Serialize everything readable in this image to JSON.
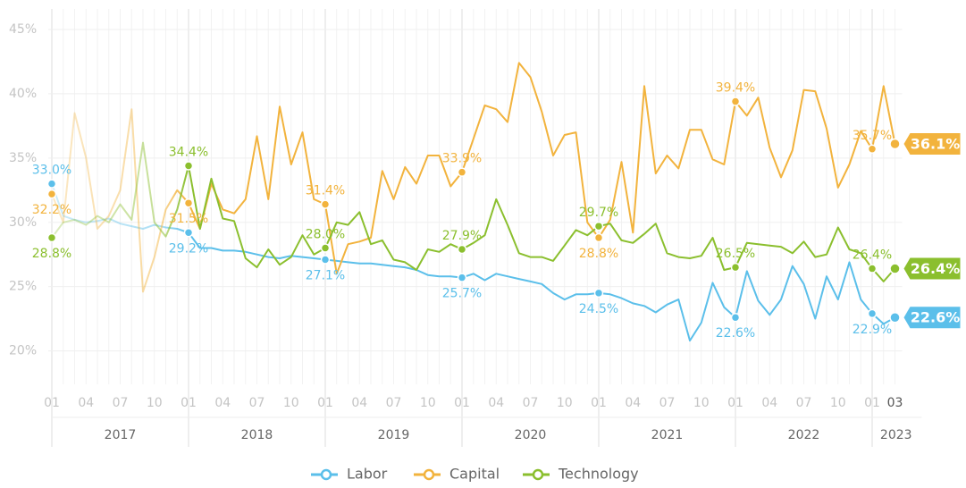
{
  "chart_data": {
    "type": "line",
    "x": [
      "2017-01",
      "2017-02",
      "2017-03",
      "2017-04",
      "2017-05",
      "2017-06",
      "2017-07",
      "2017-08",
      "2017-09",
      "2017-10",
      "2017-11",
      "2017-12",
      "2018-01",
      "2018-02",
      "2018-03",
      "2018-04",
      "2018-05",
      "2018-06",
      "2018-07",
      "2018-08",
      "2018-09",
      "2018-10",
      "2018-11",
      "2018-12",
      "2019-01",
      "2019-02",
      "2019-03",
      "2019-04",
      "2019-05",
      "2019-06",
      "2019-07",
      "2019-08",
      "2019-09",
      "2019-10",
      "2019-11",
      "2019-12",
      "2020-01",
      "2020-02",
      "2020-03",
      "2020-04",
      "2020-05",
      "2020-06",
      "2020-07",
      "2020-08",
      "2020-09",
      "2020-10",
      "2020-11",
      "2020-12",
      "2021-01",
      "2021-02",
      "2021-03",
      "2021-04",
      "2021-05",
      "2021-06",
      "2021-07",
      "2021-08",
      "2021-09",
      "2021-10",
      "2021-11",
      "2021-12",
      "2022-01",
      "2022-02",
      "2022-03",
      "2022-04",
      "2022-05",
      "2022-06",
      "2022-07",
      "2022-08",
      "2022-09",
      "2022-10",
      "2022-11",
      "2022-12",
      "2023-01",
      "2023-02",
      "2023-03"
    ],
    "xticks": [
      {
        "value": "2017-01",
        "label": "01"
      },
      {
        "value": "2017-04",
        "label": "04"
      },
      {
        "value": "2017-07",
        "label": "07"
      },
      {
        "value": "2017-10",
        "label": "10"
      },
      {
        "value": "2018-01",
        "label": "01"
      },
      {
        "value": "2018-04",
        "label": "04"
      },
      {
        "value": "2018-07",
        "label": "07"
      },
      {
        "value": "2018-10",
        "label": "10"
      },
      {
        "value": "2019-01",
        "label": "01"
      },
      {
        "value": "2019-04",
        "label": "04"
      },
      {
        "value": "2019-07",
        "label": "07"
      },
      {
        "value": "2019-10",
        "label": "10"
      },
      {
        "value": "2020-01",
        "label": "01"
      },
      {
        "value": "2020-04",
        "label": "04"
      },
      {
        "value": "2020-07",
        "label": "07"
      },
      {
        "value": "2020-10",
        "label": "10"
      },
      {
        "value": "2021-01",
        "label": "01"
      },
      {
        "value": "2021-04",
        "label": "04"
      },
      {
        "value": "2021-07",
        "label": "07"
      },
      {
        "value": "2021-10",
        "label": "10"
      },
      {
        "value": "2022-01",
        "label": "01"
      },
      {
        "value": "2022-04",
        "label": "04"
      },
      {
        "value": "2022-07",
        "label": "07"
      },
      {
        "value": "2022-10",
        "label": "10"
      },
      {
        "value": "2023-01",
        "label": "01"
      },
      {
        "value": "2023-03",
        "label": "03"
      }
    ],
    "x_groups": [
      "2017",
      "2018",
      "2019",
      "2020",
      "2021",
      "2022",
      "2023"
    ],
    "ylim": [
      17.4,
      46.6
    ],
    "yticks": [
      {
        "value": 20,
        "label": "20%"
      },
      {
        "value": 25,
        "label": "25%"
      },
      {
        "value": 30,
        "label": "30%"
      },
      {
        "value": 35,
        "label": "35%"
      },
      {
        "value": 40,
        "label": "40%"
      },
      {
        "value": 45,
        "label": "45%"
      }
    ],
    "grid": true,
    "legend": "bottom",
    "series": [
      {
        "name": "Labor",
        "color": "#5bbfea",
        "values": [
          33.0,
          30.5,
          30.2,
          30.0,
          30.1,
          30.3,
          29.9,
          29.7,
          29.5,
          29.8,
          29.6,
          29.5,
          29.2,
          28.0,
          28.0,
          27.8,
          27.8,
          27.7,
          27.5,
          27.3,
          27.2,
          27.4,
          27.3,
          27.2,
          27.1,
          27.0,
          26.9,
          26.8,
          26.8,
          26.7,
          26.6,
          26.5,
          26.3,
          25.9,
          25.8,
          25.8,
          25.7,
          26.0,
          25.5,
          26.0,
          25.8,
          25.6,
          25.4,
          25.2,
          24.5,
          24.0,
          24.4,
          24.4,
          24.5,
          24.4,
          24.1,
          23.7,
          23.5,
          23.0,
          23.6,
          24.0,
          20.8,
          22.2,
          25.3,
          23.4,
          22.6,
          26.2,
          23.9,
          22.8,
          24.0,
          26.6,
          25.2,
          22.5,
          25.8,
          24.0,
          26.9,
          24.0,
          22.9,
          22.1,
          22.6
        ],
        "value_labels": [
          "33.0%",
          null,
          null,
          null,
          null,
          null,
          null,
          null,
          null,
          null,
          null,
          null,
          "29.2%",
          null,
          null,
          null,
          null,
          null,
          null,
          null,
          null,
          null,
          null,
          null,
          "27.1%",
          null,
          null,
          null,
          null,
          null,
          null,
          null,
          null,
          null,
          null,
          null,
          "25.7%",
          null,
          null,
          null,
          null,
          null,
          null,
          null,
          null,
          null,
          null,
          null,
          "24.5%",
          null,
          null,
          null,
          null,
          null,
          null,
          null,
          null,
          null,
          null,
          null,
          "22.6%",
          null,
          null,
          null,
          null,
          null,
          null,
          null,
          null,
          null,
          null,
          null,
          "22.9%",
          null,
          "22.6%"
        ]
      },
      {
        "name": "Capital",
        "color": "#f2b33d",
        "values": [
          32.2,
          30.0,
          38.5,
          35.0,
          29.5,
          30.5,
          32.5,
          38.8,
          24.6,
          27.3,
          31.0,
          32.5,
          31.5,
          29.5,
          33.0,
          31.0,
          30.7,
          31.8,
          36.7,
          31.8,
          39.0,
          34.5,
          37.0,
          31.8,
          31.4,
          26.0,
          28.3,
          28.5,
          28.8,
          34.0,
          31.8,
          34.3,
          33.0,
          35.2,
          35.2,
          32.8,
          33.9,
          36.5,
          39.1,
          38.8,
          37.8,
          42.4,
          41.3,
          38.6,
          35.2,
          36.8,
          37.0,
          30.0,
          28.8,
          30.2,
          34.7,
          29.2,
          40.6,
          33.8,
          35.2,
          34.2,
          37.2,
          37.2,
          34.9,
          34.5,
          39.4,
          38.3,
          39.7,
          35.8,
          33.5,
          35.6,
          40.3,
          40.2,
          37.3,
          32.7,
          34.5,
          37.1,
          35.7,
          40.6,
          36.1
        ],
        "value_labels": [
          "32.2%",
          null,
          null,
          null,
          null,
          null,
          null,
          null,
          null,
          null,
          null,
          null,
          "31.5%",
          null,
          null,
          null,
          null,
          null,
          null,
          null,
          null,
          null,
          null,
          null,
          "31.4%",
          null,
          null,
          null,
          null,
          null,
          null,
          null,
          null,
          null,
          null,
          null,
          "33.9%",
          null,
          null,
          null,
          null,
          null,
          null,
          null,
          null,
          null,
          null,
          null,
          "28.8%",
          null,
          null,
          null,
          null,
          null,
          null,
          null,
          null,
          null,
          null,
          null,
          "39.4%",
          null,
          null,
          null,
          null,
          null,
          null,
          null,
          null,
          null,
          null,
          null,
          "35.7%",
          null,
          "36.1%"
        ]
      },
      {
        "name": "Technology",
        "color": "#8bbf2e",
        "values": [
          28.8,
          30.0,
          30.2,
          29.8,
          30.5,
          30.0,
          31.4,
          30.2,
          36.2,
          30.0,
          28.9,
          31.0,
          34.4,
          29.5,
          33.4,
          30.3,
          30.1,
          27.2,
          26.5,
          27.9,
          26.7,
          27.3,
          29.0,
          27.5,
          28.0,
          30.0,
          29.8,
          30.8,
          28.3,
          28.6,
          27.1,
          26.9,
          26.3,
          27.9,
          27.7,
          28.3,
          27.9,
          28.4,
          29.0,
          31.8,
          29.8,
          27.6,
          27.3,
          27.3,
          27.0,
          28.2,
          29.4,
          29.0,
          29.7,
          29.9,
          28.6,
          28.4,
          29.1,
          29.9,
          27.6,
          27.3,
          27.2,
          27.4,
          28.8,
          26.3,
          26.5,
          28.4,
          28.3,
          28.2,
          28.1,
          27.6,
          28.5,
          27.3,
          27.5,
          29.6,
          27.9,
          27.6,
          26.4,
          25.4,
          26.4
        ],
        "value_labels": [
          "28.8%",
          null,
          null,
          null,
          null,
          null,
          null,
          null,
          null,
          null,
          null,
          null,
          "34.4%",
          null,
          null,
          null,
          null,
          null,
          null,
          null,
          null,
          null,
          null,
          null,
          "28.0%",
          null,
          null,
          null,
          null,
          null,
          null,
          null,
          null,
          null,
          null,
          null,
          "27.9%",
          null,
          null,
          null,
          null,
          null,
          null,
          null,
          null,
          null,
          null,
          null,
          "29.7%",
          null,
          null,
          null,
          null,
          null,
          null,
          null,
          null,
          null,
          null,
          null,
          "26.5%",
          null,
          null,
          null,
          null,
          null,
          null,
          null,
          null,
          null,
          null,
          null,
          "26.4%",
          null,
          "26.4%"
        ]
      }
    ]
  }
}
